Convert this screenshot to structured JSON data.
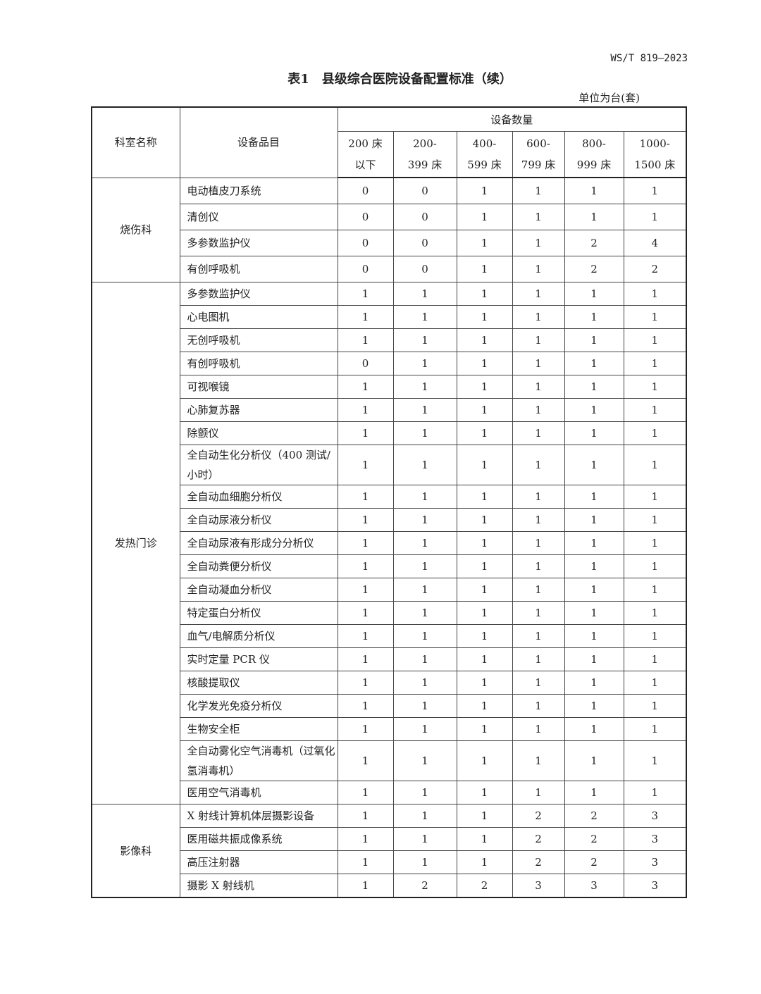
{
  "doc_code": "WS/T 819—2023",
  "title": "表1　县级综合医院设备配置标准（续）",
  "unit": "单位为台(套)",
  "headers": {
    "dept": "科室名称",
    "item": "设备品目",
    "qty": "设备数量",
    "cols": [
      [
        "200 床",
        "以下"
      ],
      [
        "200-",
        "399 床"
      ],
      [
        "400-",
        "599 床"
      ],
      [
        "600-",
        "799 床"
      ],
      [
        "800-",
        "999 床"
      ],
      [
        "1000-",
        "1500 床"
      ]
    ]
  },
  "sections": [
    {
      "dept": "烧伤科",
      "rows": [
        {
          "item": "电动植皮刀系统",
          "v": [
            0,
            0,
            1,
            1,
            1,
            1
          ]
        },
        {
          "item": "清创仪",
          "v": [
            0,
            0,
            1,
            1,
            1,
            1
          ]
        },
        {
          "item": "多参数监护仪",
          "v": [
            0,
            0,
            1,
            1,
            2,
            4
          ]
        },
        {
          "item": "有创呼吸机",
          "v": [
            0,
            0,
            1,
            1,
            2,
            2
          ]
        }
      ]
    },
    {
      "dept": "发热门诊",
      "rows": [
        {
          "item": "多参数监护仪",
          "v": [
            1,
            1,
            1,
            1,
            1,
            1
          ]
        },
        {
          "item": "心电图机",
          "v": [
            1,
            1,
            1,
            1,
            1,
            1
          ]
        },
        {
          "item": "无创呼吸机",
          "v": [
            1,
            1,
            1,
            1,
            1,
            1
          ]
        },
        {
          "item": "有创呼吸机",
          "v": [
            0,
            1,
            1,
            1,
            1,
            1
          ]
        },
        {
          "item": "可视喉镜",
          "v": [
            1,
            1,
            1,
            1,
            1,
            1
          ]
        },
        {
          "item": "心肺复苏器",
          "v": [
            1,
            1,
            1,
            1,
            1,
            1
          ]
        },
        {
          "item": "除颤仪",
          "v": [
            1,
            1,
            1,
            1,
            1,
            1
          ]
        },
        {
          "item": "全自动生化分析仪（400 测试/小时）",
          "v": [
            1,
            1,
            1,
            1,
            1,
            1
          ]
        },
        {
          "item": "全自动血细胞分析仪",
          "v": [
            1,
            1,
            1,
            1,
            1,
            1
          ]
        },
        {
          "item": "全自动尿液分析仪",
          "v": [
            1,
            1,
            1,
            1,
            1,
            1
          ]
        },
        {
          "item": "全自动尿液有形成分分析仪",
          "v": [
            1,
            1,
            1,
            1,
            1,
            1
          ]
        },
        {
          "item": "全自动粪便分析仪",
          "v": [
            1,
            1,
            1,
            1,
            1,
            1
          ]
        },
        {
          "item": "全自动凝血分析仪",
          "v": [
            1,
            1,
            1,
            1,
            1,
            1
          ]
        },
        {
          "item": "特定蛋白分析仪",
          "v": [
            1,
            1,
            1,
            1,
            1,
            1
          ]
        },
        {
          "item": "血气/电解质分析仪",
          "v": [
            1,
            1,
            1,
            1,
            1,
            1
          ]
        },
        {
          "item": "实时定量 PCR 仪",
          "v": [
            1,
            1,
            1,
            1,
            1,
            1
          ]
        },
        {
          "item": "核酸提取仪",
          "v": [
            1,
            1,
            1,
            1,
            1,
            1
          ]
        },
        {
          "item": "化学发光免疫分析仪",
          "v": [
            1,
            1,
            1,
            1,
            1,
            1
          ]
        },
        {
          "item": "生物安全柜",
          "v": [
            1,
            1,
            1,
            1,
            1,
            1
          ]
        },
        {
          "item": "全自动雾化空气消毒机（过氧化氢消毒机）",
          "v": [
            1,
            1,
            1,
            1,
            1,
            1
          ]
        },
        {
          "item": "医用空气消毒机",
          "v": [
            1,
            1,
            1,
            1,
            1,
            1
          ]
        }
      ]
    },
    {
      "dept": "影像科",
      "rows": [
        {
          "item": "X 射线计算机体层摄影设备",
          "v": [
            1,
            1,
            1,
            2,
            2,
            3
          ]
        },
        {
          "item": "医用磁共振成像系统",
          "v": [
            1,
            1,
            1,
            2,
            2,
            3
          ]
        },
        {
          "item": "高压注射器",
          "v": [
            1,
            1,
            1,
            2,
            2,
            3
          ]
        },
        {
          "item": "摄影 X 射线机",
          "v": [
            1,
            2,
            2,
            3,
            3,
            3
          ]
        }
      ]
    }
  ]
}
